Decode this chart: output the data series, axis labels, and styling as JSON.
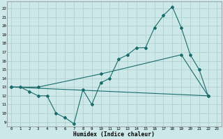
{
  "xlabel": "Humidex (Indice chaleur)",
  "background_color": "#cce8e8",
  "grid_color": "#aacccc",
  "line_color": "#1a6b6b",
  "xlim": [
    -0.5,
    23.5
  ],
  "ylim": [
    8.5,
    22.8
  ],
  "yticks": [
    9,
    10,
    11,
    12,
    13,
    14,
    15,
    16,
    17,
    18,
    19,
    20,
    21,
    22
  ],
  "xticks": [
    0,
    1,
    2,
    3,
    4,
    5,
    6,
    7,
    8,
    9,
    10,
    11,
    12,
    13,
    14,
    15,
    16,
    17,
    18,
    19,
    20,
    21,
    22,
    23
  ],
  "line1_x": [
    0,
    1,
    2,
    3,
    4,
    5,
    6,
    7,
    8,
    9,
    10,
    11,
    12,
    13,
    14,
    15,
    16,
    17,
    18,
    19,
    20,
    21,
    22
  ],
  "line1_y": [
    13,
    13,
    12.5,
    12,
    12,
    10,
    9.5,
    8.8,
    12.7,
    11,
    13.5,
    14,
    16.2,
    16.7,
    17.5,
    17.5,
    19.8,
    21.2,
    22.2,
    19.8,
    16.7,
    15,
    12
  ],
  "line2_x": [
    0,
    3,
    10,
    19,
    22
  ],
  "line2_y": [
    13,
    13,
    14.5,
    16.7,
    12
  ],
  "line3_x": [
    0,
    22
  ],
  "line3_y": [
    13,
    12
  ]
}
